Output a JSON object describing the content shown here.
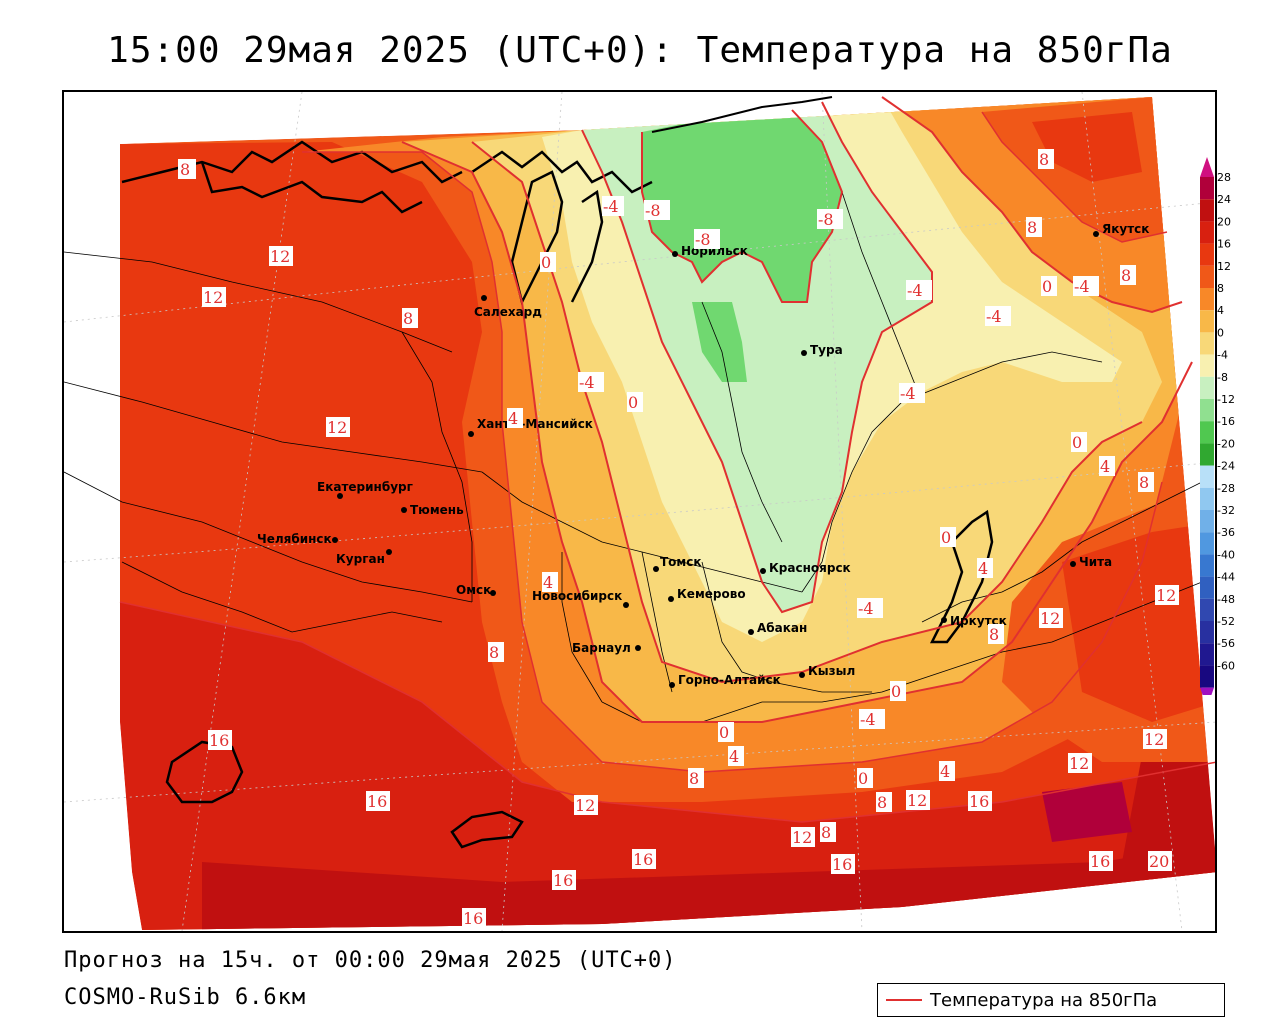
{
  "title": "15:00 29мая 2025 (UTC+0): Температура на 850гПа",
  "footer": {
    "forecast": "Прогноз на 15ч. от 00:00 29мая 2025 (UTC+0)",
    "model": "COSMO-RuSib 6.6км"
  },
  "legend": {
    "label": "Температура на 850гПа",
    "line_color": "#e03030"
  },
  "colorbar": {
    "ticks": [
      "28",
      "24",
      "20",
      "16",
      "12",
      "8",
      "4",
      "0",
      "-4",
      "-8",
      "-12",
      "-16",
      "-20",
      "-24",
      "-28",
      "-32",
      "-36",
      "-40",
      "-44",
      "-48",
      "-52",
      "-56",
      "-60"
    ],
    "colors": [
      "#b0003a",
      "#c01010",
      "#d82010",
      "#e83810",
      "#f05818",
      "#f88828",
      "#f8b848",
      "#f8d878",
      "#f8f0b0",
      "#c8f0c0",
      "#90e090",
      "#50c850",
      "#30a830",
      "#b8e0f8",
      "#90c8f0",
      "#70b0e8",
      "#5098e0",
      "#3878d0",
      "#3060c0",
      "#3048b0",
      "#2830a0",
      "#201890",
      "#180880"
    ]
  },
  "cities": [
    {
      "name": "Якутск"
    },
    {
      "name": "Норильск"
    },
    {
      "name": "Салехард"
    },
    {
      "name": "Тура"
    },
    {
      "name": "Ханты-Мансийск"
    },
    {
      "name": "Екатеринбург"
    },
    {
      "name": "Тюмень"
    },
    {
      "name": "Челябинск"
    },
    {
      "name": "Курган"
    },
    {
      "name": "Омск"
    },
    {
      "name": "Новосибирск"
    },
    {
      "name": "Томск"
    },
    {
      "name": "Кемерово"
    },
    {
      "name": "Красноярск"
    },
    {
      "name": "Абакан"
    },
    {
      "name": "Барнаул"
    },
    {
      "name": "Горно-Алтайск"
    },
    {
      "name": "Кызыл"
    },
    {
      "name": "Иркутск"
    },
    {
      "name": "Чита"
    }
  ],
  "isolines": [
    "8",
    "12",
    "12",
    "8",
    "12",
    "16",
    "16",
    "16",
    "16",
    "16",
    "16",
    "12",
    "12",
    "8",
    "8",
    "4",
    "4",
    "0",
    "-4",
    "0",
    "-4",
    "-8",
    "-8",
    "-8",
    "-4",
    "-4",
    "-4",
    "0",
    "-4",
    "8",
    "8",
    "0",
    "-4",
    "8",
    "0",
    "4",
    "8",
    "4",
    "0",
    "-4",
    "4",
    "0",
    "12",
    "12",
    "12",
    "12",
    "12",
    "16",
    "16",
    "20",
    "8",
    "4",
    "0",
    "12",
    "8",
    "12",
    "12",
    "16",
    "8"
  ]
}
